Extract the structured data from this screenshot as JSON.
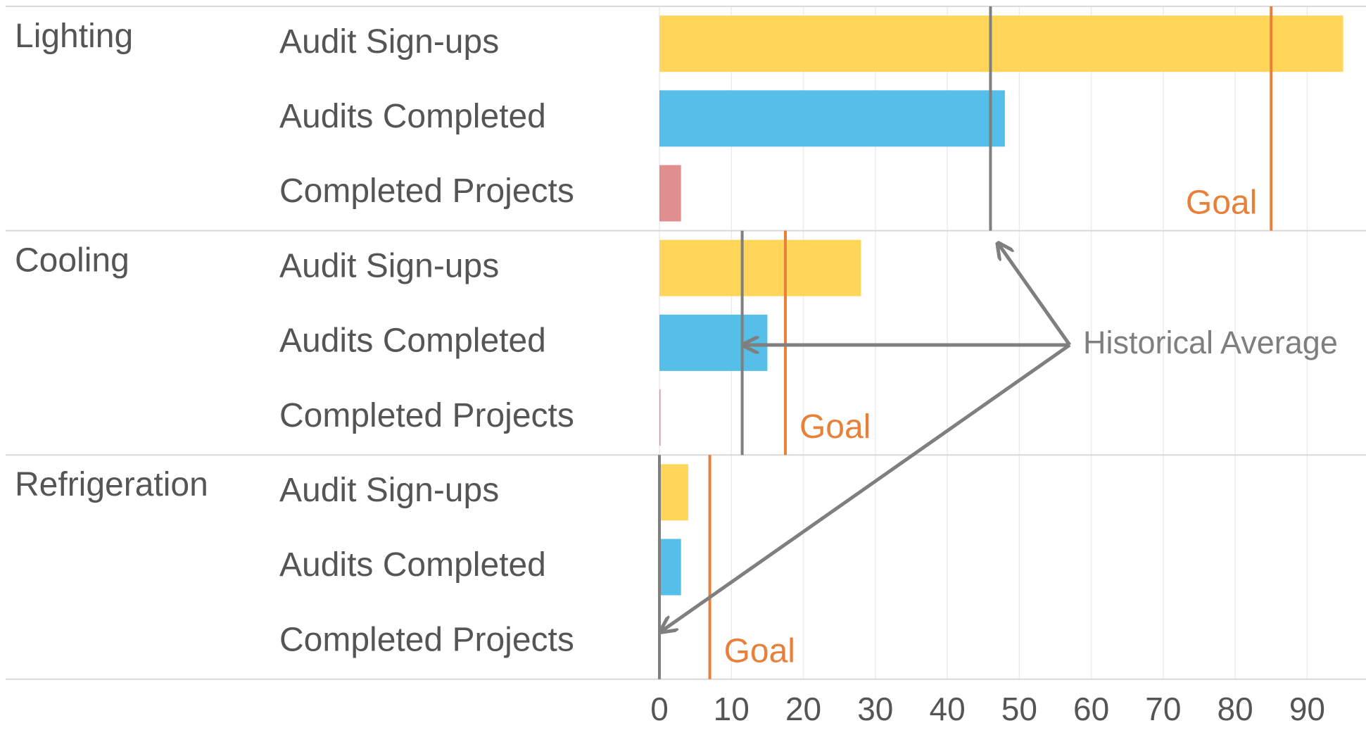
{
  "chart_data": {
    "type": "bar",
    "orientation": "horizontal",
    "groups": [
      {
        "name": "Lighting",
        "categories": [
          "Audit Sign-ups",
          "Audits Completed",
          "Completed Projects"
        ],
        "values": [
          95,
          48,
          3
        ],
        "historical_average": 46,
        "goal": 85,
        "goal_label": "Goal"
      },
      {
        "name": "Cooling",
        "categories": [
          "Audit Sign-ups",
          "Audits Completed",
          "Completed Projects"
        ],
        "values": [
          28,
          15,
          0
        ],
        "historical_average": 11.5,
        "goal": 17.5,
        "goal_label": "Goal"
      },
      {
        "name": "Refrigeration",
        "categories": [
          "Audit Sign-ups",
          "Audits Completed",
          "Completed Projects"
        ],
        "values": [
          4,
          3,
          0
        ],
        "historical_average": 0,
        "goal": 7,
        "goal_label": "Goal"
      }
    ],
    "colors": [
      "#ffd55a",
      "#55bfea",
      "#e08e8e"
    ],
    "goal_color": "#e8803a",
    "average_color": "#7f7f7f",
    "annotation": "Historical Average",
    "xlim": [
      0,
      97
    ],
    "xticks": [
      0,
      10,
      20,
      30,
      40,
      50,
      60,
      70,
      80,
      90
    ],
    "grid": true
  }
}
